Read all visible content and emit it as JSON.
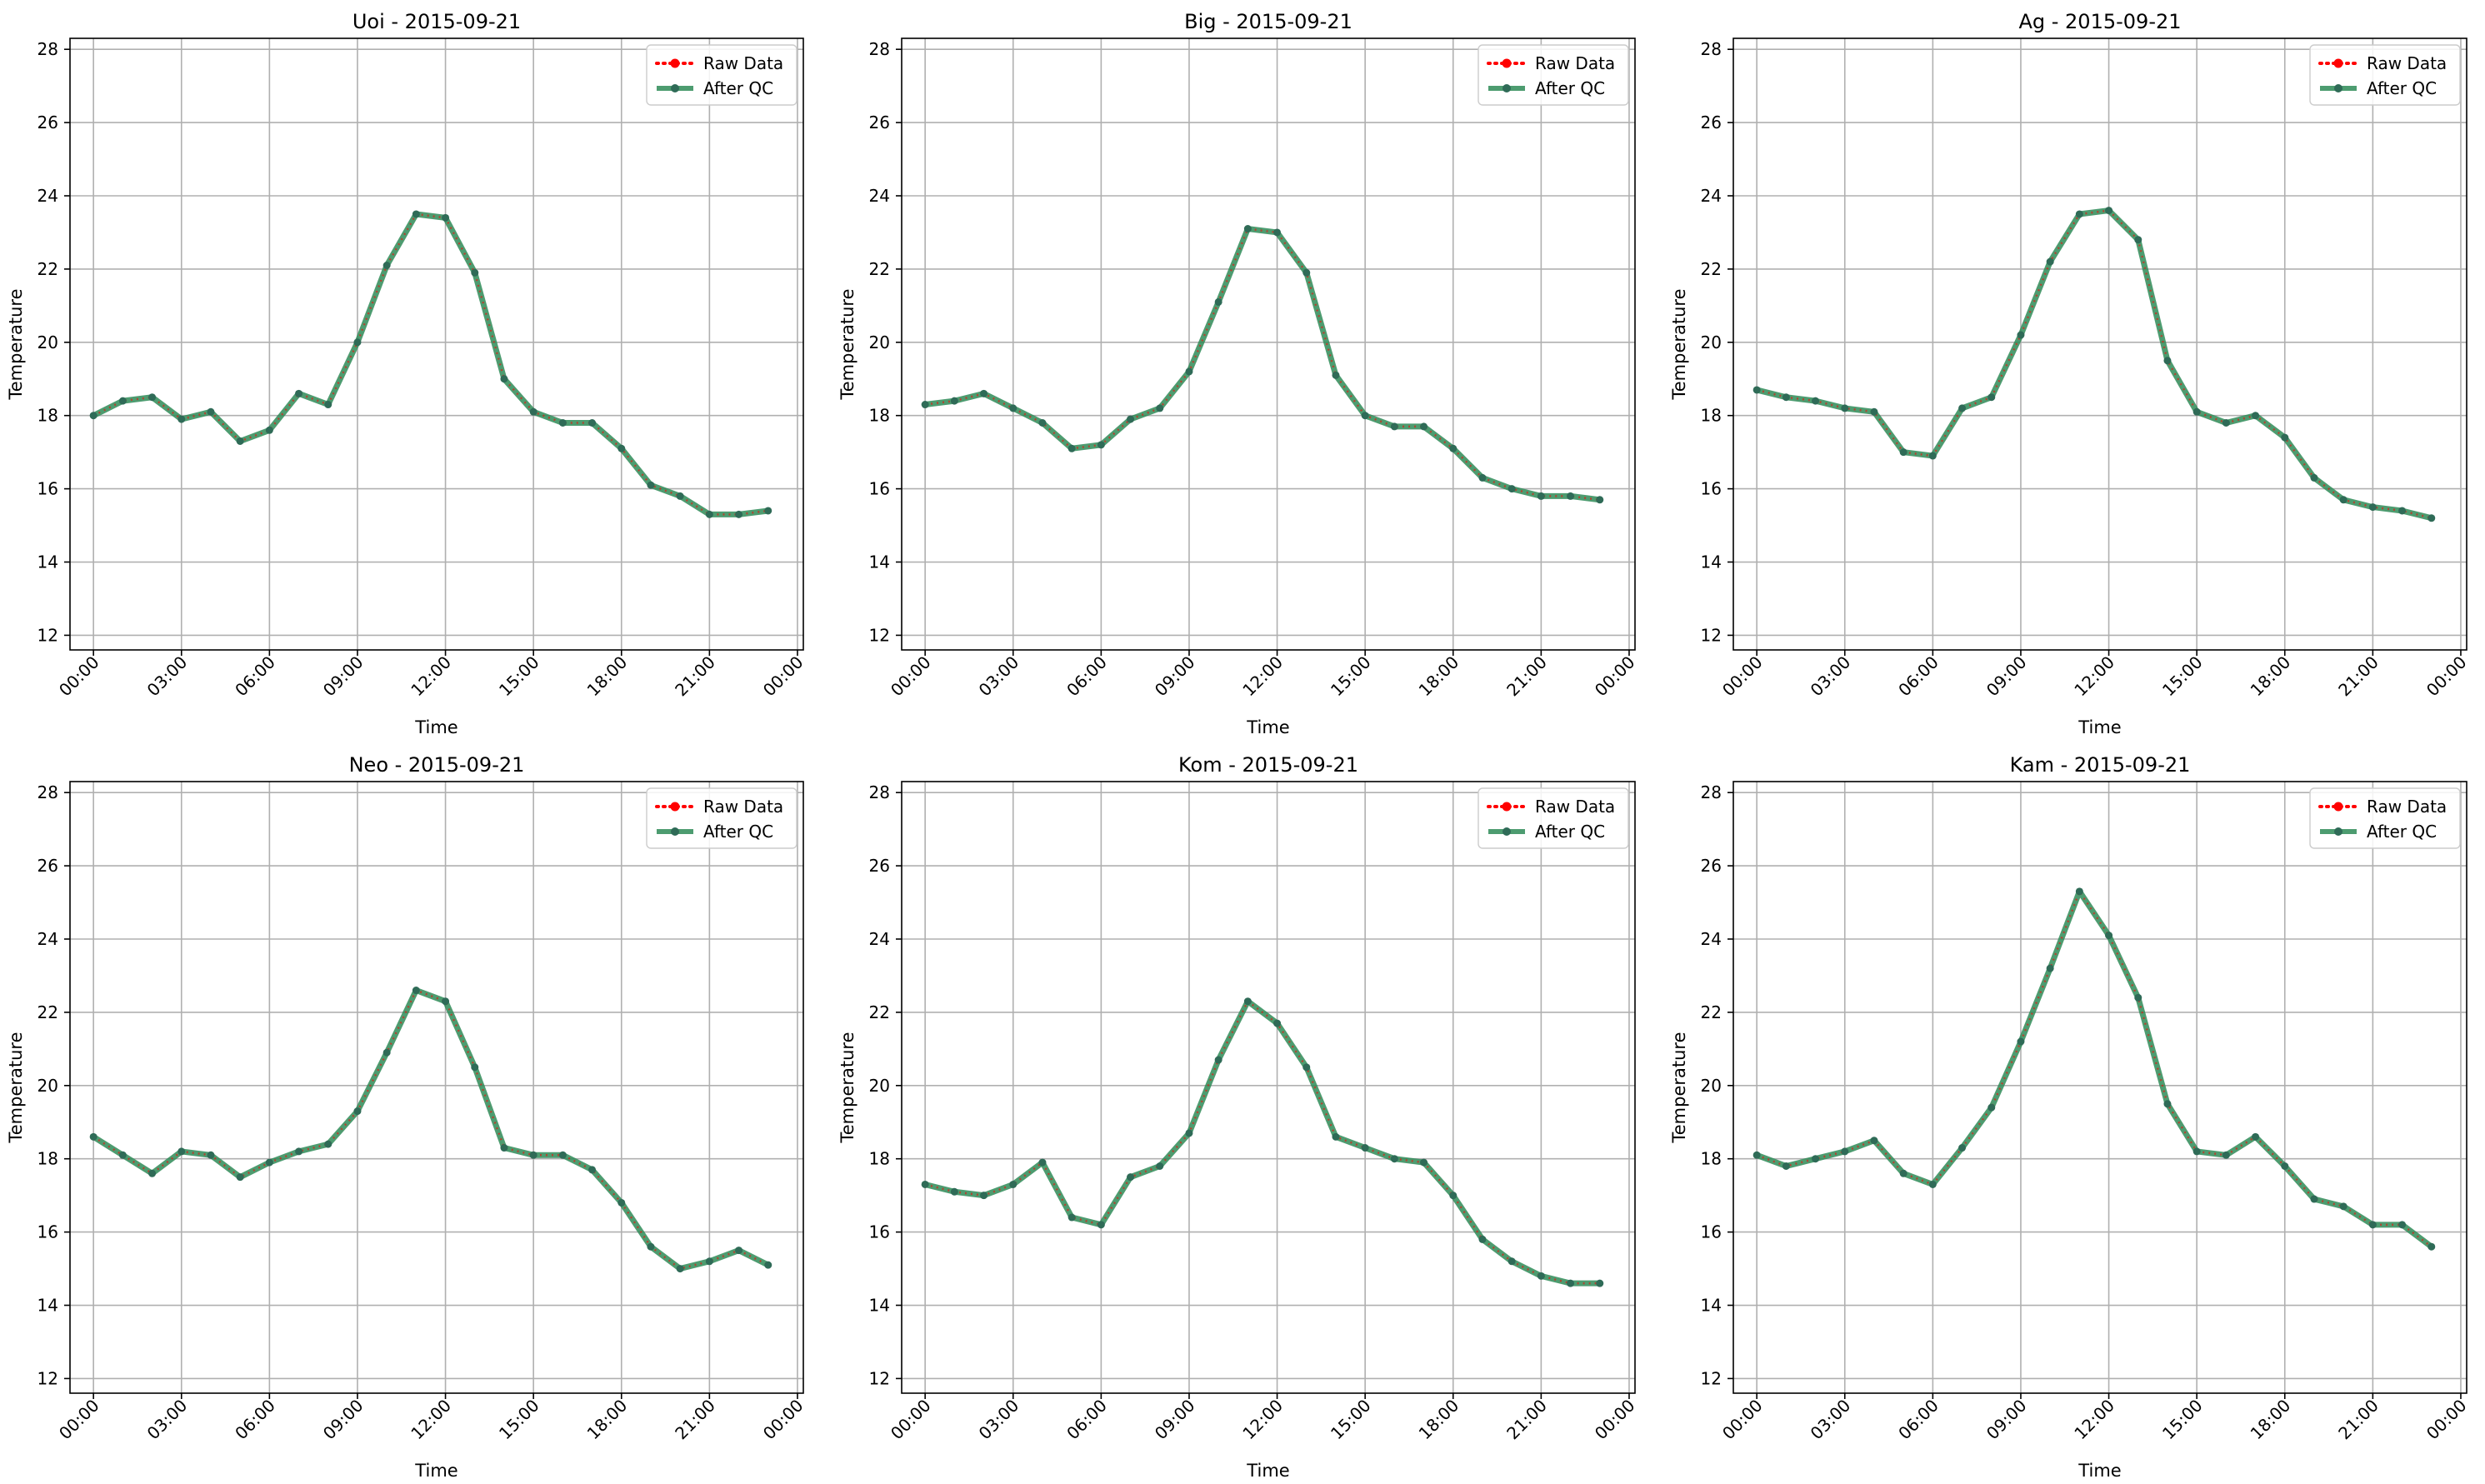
{
  "figure": {
    "background": "#ffffff"
  },
  "style": {
    "raw_color": "#ff0000",
    "qc_color": "#2e8b57",
    "qc_marker_color": "#2f6b57",
    "grid_color": "#b0b0b0"
  },
  "legend_labels": [
    "Raw Data",
    "After QC"
  ],
  "chart_data": [
    {
      "type": "line",
      "title": "Uoi - 2015-09-21",
      "xlabel": "Time",
      "ylabel": "Temperature",
      "xlim": [
        -0.8,
        24.2
      ],
      "ylim": [
        11.6,
        28.3
      ],
      "yticks": [
        12,
        14,
        16,
        18,
        20,
        22,
        24,
        26,
        28
      ],
      "xtick_values": [
        0,
        3,
        6,
        9,
        12,
        15,
        18,
        21,
        24
      ],
      "xtick_labels": [
        "00:00",
        "03:00",
        "06:00",
        "09:00",
        "12:00",
        "15:00",
        "18:00",
        "21:00",
        "00:00"
      ],
      "grid": true,
      "legend_position": "upper right",
      "x": [
        0,
        1,
        2,
        3,
        4,
        5,
        6,
        7,
        8,
        9,
        10,
        11,
        12,
        13,
        14,
        15,
        16,
        17,
        18,
        19,
        20,
        21,
        22,
        23
      ],
      "series": [
        {
          "name": "Raw Data",
          "values": [
            18.0,
            18.4,
            18.5,
            17.9,
            18.1,
            17.3,
            17.6,
            18.6,
            18.3,
            20.0,
            22.1,
            23.5,
            23.4,
            21.9,
            19.0,
            18.1,
            17.8,
            17.8,
            17.1,
            16.1,
            15.8,
            15.3,
            15.3,
            15.4
          ]
        },
        {
          "name": "After QC",
          "values": [
            18.0,
            18.4,
            18.5,
            17.9,
            18.1,
            17.3,
            17.6,
            18.6,
            18.3,
            20.0,
            22.1,
            23.5,
            23.4,
            21.9,
            19.0,
            18.1,
            17.8,
            17.8,
            17.1,
            16.1,
            15.8,
            15.3,
            15.3,
            15.4
          ]
        }
      ]
    },
    {
      "type": "line",
      "title": "Big - 2015-09-21",
      "xlabel": "Time",
      "ylabel": "Temperature",
      "xlim": [
        -0.8,
        24.2
      ],
      "ylim": [
        11.6,
        28.3
      ],
      "yticks": [
        12,
        14,
        16,
        18,
        20,
        22,
        24,
        26,
        28
      ],
      "xtick_values": [
        0,
        3,
        6,
        9,
        12,
        15,
        18,
        21,
        24
      ],
      "xtick_labels": [
        "00:00",
        "03:00",
        "06:00",
        "09:00",
        "12:00",
        "15:00",
        "18:00",
        "21:00",
        "00:00"
      ],
      "grid": true,
      "legend_position": "upper right",
      "x": [
        0,
        1,
        2,
        3,
        4,
        5,
        6,
        7,
        8,
        9,
        10,
        11,
        12,
        13,
        14,
        15,
        16,
        17,
        18,
        19,
        20,
        21,
        22,
        23
      ],
      "series": [
        {
          "name": "Raw Data",
          "values": [
            18.3,
            18.4,
            18.6,
            18.2,
            17.8,
            17.1,
            17.2,
            17.9,
            18.2,
            19.2,
            21.1,
            23.1,
            23.0,
            21.9,
            19.1,
            18.0,
            17.7,
            17.7,
            17.1,
            16.3,
            16.0,
            15.8,
            15.8,
            15.7
          ]
        },
        {
          "name": "After QC",
          "values": [
            18.3,
            18.4,
            18.6,
            18.2,
            17.8,
            17.1,
            17.2,
            17.9,
            18.2,
            19.2,
            21.1,
            23.1,
            23.0,
            21.9,
            19.1,
            18.0,
            17.7,
            17.7,
            17.1,
            16.3,
            16.0,
            15.8,
            15.8,
            15.7
          ]
        }
      ]
    },
    {
      "type": "line",
      "title": "Ag - 2015-09-21",
      "xlabel": "Time",
      "ylabel": "Temperature",
      "xlim": [
        -0.8,
        24.2
      ],
      "ylim": [
        11.6,
        28.3
      ],
      "yticks": [
        12,
        14,
        16,
        18,
        20,
        22,
        24,
        26,
        28
      ],
      "xtick_values": [
        0,
        3,
        6,
        9,
        12,
        15,
        18,
        21,
        24
      ],
      "xtick_labels": [
        "00:00",
        "03:00",
        "06:00",
        "09:00",
        "12:00",
        "15:00",
        "18:00",
        "21:00",
        "00:00"
      ],
      "grid": true,
      "legend_position": "upper right",
      "x": [
        0,
        1,
        2,
        3,
        4,
        5,
        6,
        7,
        8,
        9,
        10,
        11,
        12,
        13,
        14,
        15,
        16,
        17,
        18,
        19,
        20,
        21,
        22,
        23
      ],
      "series": [
        {
          "name": "Raw Data",
          "values": [
            18.7,
            18.5,
            18.4,
            18.2,
            18.1,
            17.0,
            16.9,
            18.2,
            18.5,
            20.2,
            22.2,
            23.5,
            23.6,
            22.8,
            19.5,
            18.1,
            17.8,
            18.0,
            17.4,
            16.3,
            15.7,
            15.5,
            15.4,
            15.2
          ]
        },
        {
          "name": "After QC",
          "values": [
            18.7,
            18.5,
            18.4,
            18.2,
            18.1,
            17.0,
            16.9,
            18.2,
            18.5,
            20.2,
            22.2,
            23.5,
            23.6,
            22.8,
            19.5,
            18.1,
            17.8,
            18.0,
            17.4,
            16.3,
            15.7,
            15.5,
            15.4,
            15.2
          ]
        }
      ]
    },
    {
      "type": "line",
      "title": "Neo - 2015-09-21",
      "xlabel": "Time",
      "ylabel": "Temperature",
      "xlim": [
        -0.8,
        24.2
      ],
      "ylim": [
        11.6,
        28.3
      ],
      "yticks": [
        12,
        14,
        16,
        18,
        20,
        22,
        24,
        26,
        28
      ],
      "xtick_values": [
        0,
        3,
        6,
        9,
        12,
        15,
        18,
        21,
        24
      ],
      "xtick_labels": [
        "00:00",
        "03:00",
        "06:00",
        "09:00",
        "12:00",
        "15:00",
        "18:00",
        "21:00",
        "00:00"
      ],
      "grid": true,
      "legend_position": "upper right",
      "x": [
        0,
        1,
        2,
        3,
        4,
        5,
        6,
        7,
        8,
        9,
        10,
        11,
        12,
        13,
        14,
        15,
        16,
        17,
        18,
        19,
        20,
        21,
        22,
        23
      ],
      "series": [
        {
          "name": "Raw Data",
          "values": [
            18.6,
            18.1,
            17.6,
            18.2,
            18.1,
            17.5,
            17.9,
            18.2,
            18.4,
            19.3,
            20.9,
            22.6,
            22.3,
            20.5,
            18.3,
            18.1,
            18.1,
            17.7,
            16.8,
            15.6,
            15.0,
            15.2,
            15.5,
            15.1
          ]
        },
        {
          "name": "After QC",
          "values": [
            18.6,
            18.1,
            17.6,
            18.2,
            18.1,
            17.5,
            17.9,
            18.2,
            18.4,
            19.3,
            20.9,
            22.6,
            22.3,
            20.5,
            18.3,
            18.1,
            18.1,
            17.7,
            16.8,
            15.6,
            15.0,
            15.2,
            15.5,
            15.1
          ]
        }
      ]
    },
    {
      "type": "line",
      "title": "Kom - 2015-09-21",
      "xlabel": "Time",
      "ylabel": "Temperature",
      "xlim": [
        -0.8,
        24.2
      ],
      "ylim": [
        11.6,
        28.3
      ],
      "yticks": [
        12,
        14,
        16,
        18,
        20,
        22,
        24,
        26,
        28
      ],
      "xtick_values": [
        0,
        3,
        6,
        9,
        12,
        15,
        18,
        21,
        24
      ],
      "xtick_labels": [
        "00:00",
        "03:00",
        "06:00",
        "09:00",
        "12:00",
        "15:00",
        "18:00",
        "21:00",
        "00:00"
      ],
      "grid": true,
      "legend_position": "upper right",
      "x": [
        0,
        1,
        2,
        3,
        4,
        5,
        6,
        7,
        8,
        9,
        10,
        11,
        12,
        13,
        14,
        15,
        16,
        17,
        18,
        19,
        20,
        21,
        22,
        23
      ],
      "series": [
        {
          "name": "Raw Data",
          "values": [
            17.3,
            17.1,
            17.0,
            17.3,
            17.9,
            16.4,
            16.2,
            17.5,
            17.8,
            18.7,
            20.7,
            22.3,
            21.7,
            20.5,
            18.6,
            18.3,
            18.0,
            17.9,
            17.0,
            15.8,
            15.2,
            14.8,
            14.6,
            14.6
          ]
        },
        {
          "name": "After QC",
          "values": [
            17.3,
            17.1,
            17.0,
            17.3,
            17.9,
            16.4,
            16.2,
            17.5,
            17.8,
            18.7,
            20.7,
            22.3,
            21.7,
            20.5,
            18.6,
            18.3,
            18.0,
            17.9,
            17.0,
            15.8,
            15.2,
            14.8,
            14.6,
            14.6
          ]
        }
      ]
    },
    {
      "type": "line",
      "title": "Kam - 2015-09-21",
      "xlabel": "Time",
      "ylabel": "Temperature",
      "xlim": [
        -0.8,
        24.2
      ],
      "ylim": [
        11.6,
        28.3
      ],
      "yticks": [
        12,
        14,
        16,
        18,
        20,
        22,
        24,
        26,
        28
      ],
      "xtick_values": [
        0,
        3,
        6,
        9,
        12,
        15,
        18,
        21,
        24
      ],
      "xtick_labels": [
        "00:00",
        "03:00",
        "06:00",
        "09:00",
        "12:00",
        "15:00",
        "18:00",
        "21:00",
        "00:00"
      ],
      "grid": true,
      "legend_position": "upper right",
      "x": [
        0,
        1,
        2,
        3,
        4,
        5,
        6,
        7,
        8,
        9,
        10,
        11,
        12,
        13,
        14,
        15,
        16,
        17,
        18,
        19,
        20,
        21,
        22,
        23
      ],
      "series": [
        {
          "name": "Raw Data",
          "values": [
            18.1,
            17.8,
            18.0,
            18.2,
            18.5,
            17.6,
            17.3,
            18.3,
            19.4,
            21.2,
            23.2,
            25.3,
            24.1,
            22.4,
            19.5,
            18.2,
            18.1,
            18.6,
            17.8,
            16.9,
            16.7,
            16.2,
            16.2,
            15.6
          ]
        },
        {
          "name": "After QC",
          "values": [
            18.1,
            17.8,
            18.0,
            18.2,
            18.5,
            17.6,
            17.3,
            18.3,
            19.4,
            21.2,
            23.2,
            25.3,
            24.1,
            22.4,
            19.5,
            18.2,
            18.1,
            18.6,
            17.8,
            16.9,
            16.7,
            16.2,
            16.2,
            15.6
          ]
        }
      ]
    }
  ]
}
